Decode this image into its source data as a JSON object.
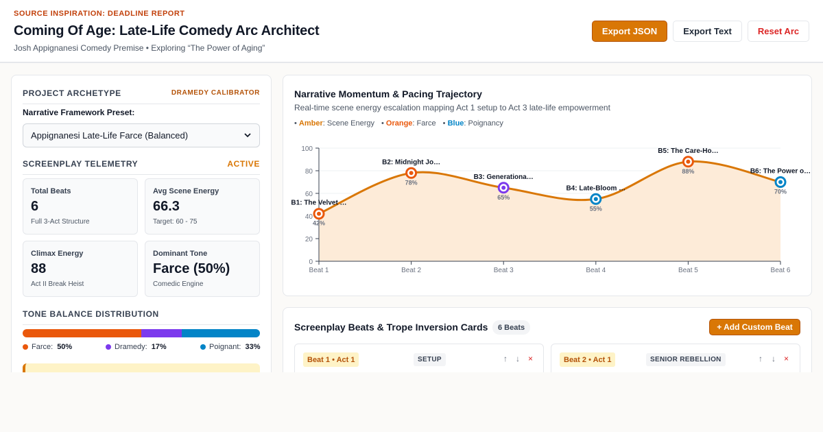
{
  "header": {
    "eyebrow": "SOURCE INSPIRATION: DEADLINE REPORT",
    "title": "Coming Of Age: Late-Life Comedy Arc Architect",
    "subtitle": "Josh Appignanesi Comedy Premise • Exploring “The Power of Aging”",
    "buttons": {
      "export_json": "Export JSON",
      "export_text": "Export Text",
      "reset": "Reset Arc"
    }
  },
  "archetype": {
    "title": "PROJECT ARCHETYPE",
    "badge": "DRAMEDY CALIBRATOR",
    "preset_label": "Narrative Framework Preset:",
    "preset_value": "Appignanesi Late-Life Farce (Balanced)"
  },
  "telemetry": {
    "title": "SCREENPLAY TELEMETRY",
    "status": "ACTIVE",
    "cards": [
      {
        "label": "Total Beats",
        "value": "6",
        "note": "Full 3-Act Structure"
      },
      {
        "label": "Avg Scene Energy",
        "value": "66.3",
        "note": "Target: 60 - 75"
      },
      {
        "label": "Climax Energy",
        "value": "88",
        "note": "Act II Break Heist"
      },
      {
        "label": "Dominant Tone",
        "value": "Farce (50%)",
        "note": "Comedic Engine"
      }
    ]
  },
  "tone": {
    "title": "TONE BALANCE DISTRIBUTION",
    "segments": [
      {
        "label": "Farce:",
        "pct": "50%",
        "value": 50,
        "color": "#ea580c"
      },
      {
        "label": "Dramedy:",
        "pct": "17%",
        "value": 17,
        "color": "#7c3aed"
      },
      {
        "label": "Poignant:",
        "pct": "33%",
        "value": 33,
        "color": "#0284c7"
      }
    ]
  },
  "chart": {
    "title": "Narrative Momentum & Pacing Trajectory",
    "subtitle": "Real-time scene energy escalation mapping Act 1 setup to Act 3 late-life empowerment",
    "legend": [
      {
        "prefix": "•",
        "key": "Amber",
        "rest": ": Scene Energy",
        "color": "#d97706"
      },
      {
        "prefix": "•",
        "key": "Orange",
        "rest": ": Farce",
        "color": "#ea580c"
      },
      {
        "prefix": "•",
        "key": "Blue",
        "rest": ": Poignancy",
        "color": "#0284c7"
      }
    ]
  },
  "chart_data": {
    "type": "line",
    "categories": [
      "Beat 1",
      "Beat 2",
      "Beat 3",
      "Beat 4",
      "Beat 5",
      "Beat 6"
    ],
    "values": [
      42,
      78,
      65,
      55,
      88,
      70
    ],
    "point_labels": [
      "B1: The Velvet …",
      "B2: Midnight Jo…",
      "B3: Generationa…",
      "B4: Late-Bloom …",
      "B5: The Care-Ho…",
      "B6: The Power o…"
    ],
    "value_labels": [
      "42%",
      "78%",
      "65%",
      "55%",
      "88%",
      "70%"
    ],
    "point_tones": [
      "farce",
      "farce",
      "dramedy",
      "poignant",
      "farce",
      "poignant"
    ],
    "tone_colors": {
      "farce": "#ea580c",
      "dramedy": "#7c3aed",
      "poignant": "#0284c7"
    },
    "line_color": "#d97706",
    "area_fill": "#fdebd8",
    "yticks": [
      0,
      20,
      40,
      60,
      80,
      100
    ],
    "ylim": [
      0,
      100
    ],
    "grid": true
  },
  "beats": {
    "title": "Screenplay Beats & Trope Inversion Cards",
    "count": "6 Beats",
    "add_label": "+ Add Custom Beat",
    "cards": [
      {
        "tag": "Beat 1 • Act 1",
        "type": "SETUP",
        "up": "↑",
        "down": "↓",
        "del": "×"
      },
      {
        "tag": "Beat 2 • Act 1",
        "type": "SENIOR REBELLION",
        "up": "↑",
        "down": "↓",
        "del": "×"
      }
    ]
  }
}
